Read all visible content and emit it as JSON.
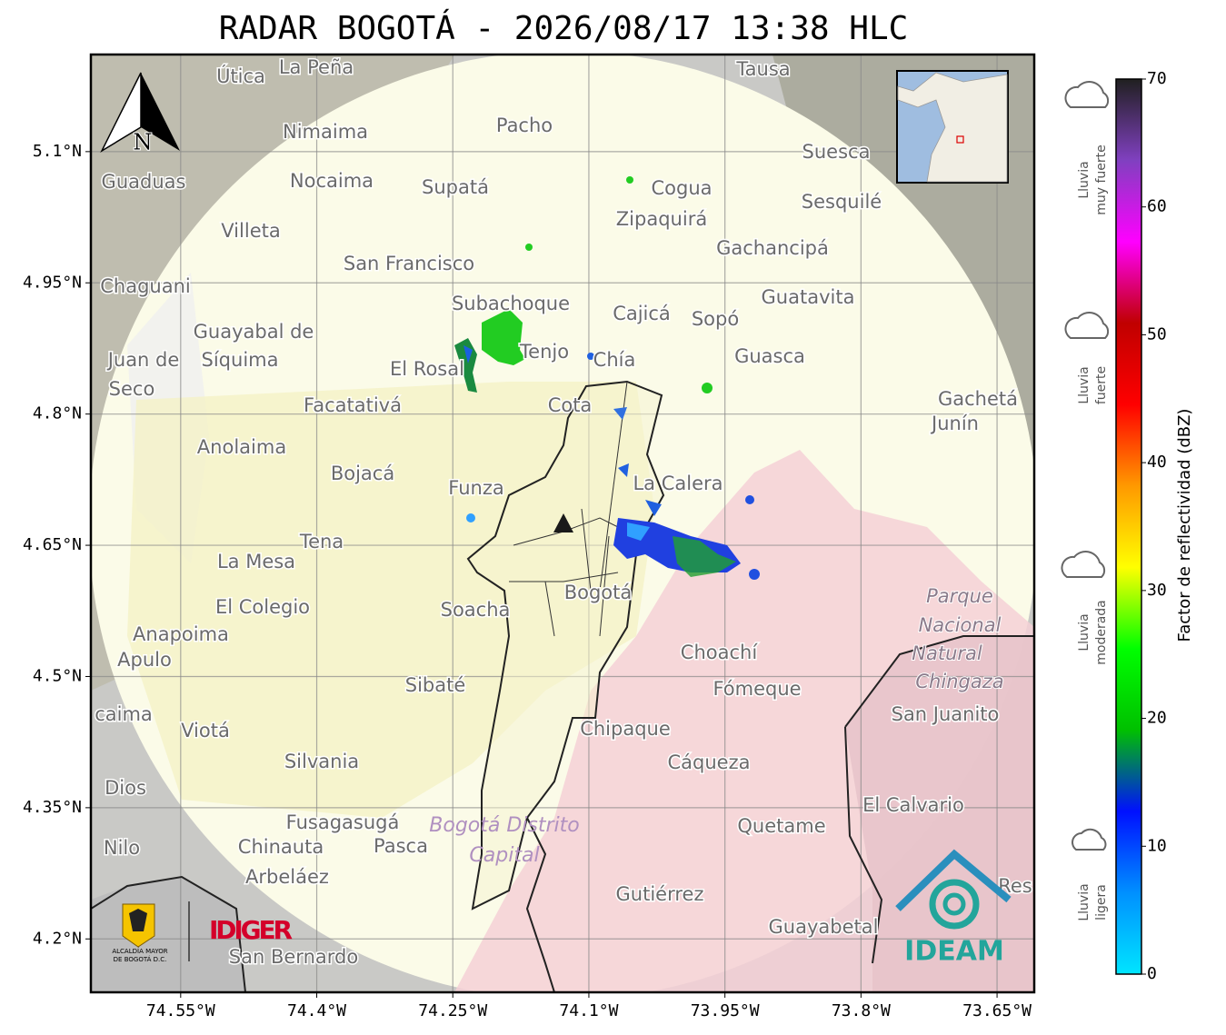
{
  "title": "RADAR BOGOTÁ - 2026/08/17 13:38 HLC",
  "north_label": "N",
  "lon_range": [
    -74.649,
    -73.609
  ],
  "lat_range": [
    4.139,
    5.211
  ],
  "lon_ticks": [
    {
      "value": -74.55,
      "label": "74.55°W"
    },
    {
      "value": -74.4,
      "label": "74.4°W"
    },
    {
      "value": -74.25,
      "label": "74.25°W"
    },
    {
      "value": -74.1,
      "label": "74.1°W"
    },
    {
      "value": -73.95,
      "label": "73.95°W"
    },
    {
      "value": -73.8,
      "label": "73.8°W"
    },
    {
      "value": -73.65,
      "label": "73.65°W"
    }
  ],
  "lat_ticks": [
    {
      "value": 5.1,
      "label": "5.1°N"
    },
    {
      "value": 4.95,
      "label": "4.95°N"
    },
    {
      "value": 4.8,
      "label": "4.8°N"
    },
    {
      "value": 4.65,
      "label": "4.65°N"
    },
    {
      "value": 4.5,
      "label": "4.5°N"
    },
    {
      "value": 4.35,
      "label": "4.35°N"
    },
    {
      "value": 4.2,
      "label": "4.2°N"
    }
  ],
  "colorbar": {
    "label": "Factor de reflectividad (dBZ)",
    "lim": [
      0,
      70
    ],
    "ticks": [
      0,
      10,
      20,
      30,
      40,
      50,
      60,
      70
    ],
    "colors": [
      "#00e5ff",
      "#0090ff",
      "#0010ff",
      "#00c000",
      "#00ff00",
      "#ffff00",
      "#ff9900",
      "#ff0000",
      "#c00000",
      "#ff00ff",
      "#8040c0",
      "#202020"
    ]
  },
  "rain_legend": [
    [
      "Lluvia",
      "muy fuerte"
    ],
    [
      "Lluvia",
      "fuerte"
    ],
    [
      "Lluvia",
      "moderada"
    ],
    [
      "Lluvia",
      "ligera"
    ]
  ],
  "logos": {
    "alcaldia": [
      "ALCALDÍA MAYOR",
      "DE BOGOTÁ D.C."
    ],
    "idiger": "IDIGER",
    "ideam": "IDEAM"
  },
  "places": [
    "La Peña",
    "Útica",
    "Tausa",
    "Nimaima",
    "Pacho",
    "Guaduas",
    "Nocaima",
    "Supatá",
    "Cogua",
    "Suesca",
    "Sesquilé",
    "Zipaquirá",
    "Villeta",
    "Gachancipá",
    "San Francisco",
    "Chaguani",
    "Subachoque",
    "Guatavita",
    "Cajicá",
    "Sopó",
    "Guayabal de",
    "Síquima",
    "Tenjo",
    "Juan de",
    "Guasca",
    "El Rosal",
    "Chía",
    "Seco",
    "Facatativá",
    "Cota",
    "Gachetá",
    "Junín",
    "Anolaima",
    "Bojacá",
    "La Calera",
    "Funza",
    "Tena",
    "La Mesa",
    "Bogotá",
    "El Colegio",
    "Soacha",
    "Anapoima",
    "Apulo",
    "Choachí",
    "Sibaté",
    "Fómeque",
    "San Juanito",
    "caima",
    "Viotá",
    "Chipaque",
    "Silvania",
    "Cáqueza",
    "Dios",
    "El Calvario",
    "Fusagasugá",
    "Quetame",
    "Nilo",
    "Chinauta",
    "Pasca",
    "Arbeláez",
    "Gutiérrez",
    "Guayabetal",
    "San Bernardo",
    "Res"
  ],
  "park_labels": [
    "Parque",
    "Nacional",
    "Natural",
    "Chingaza"
  ],
  "district_labels": [
    "Bogotá Distrito",
    "Capital"
  ]
}
